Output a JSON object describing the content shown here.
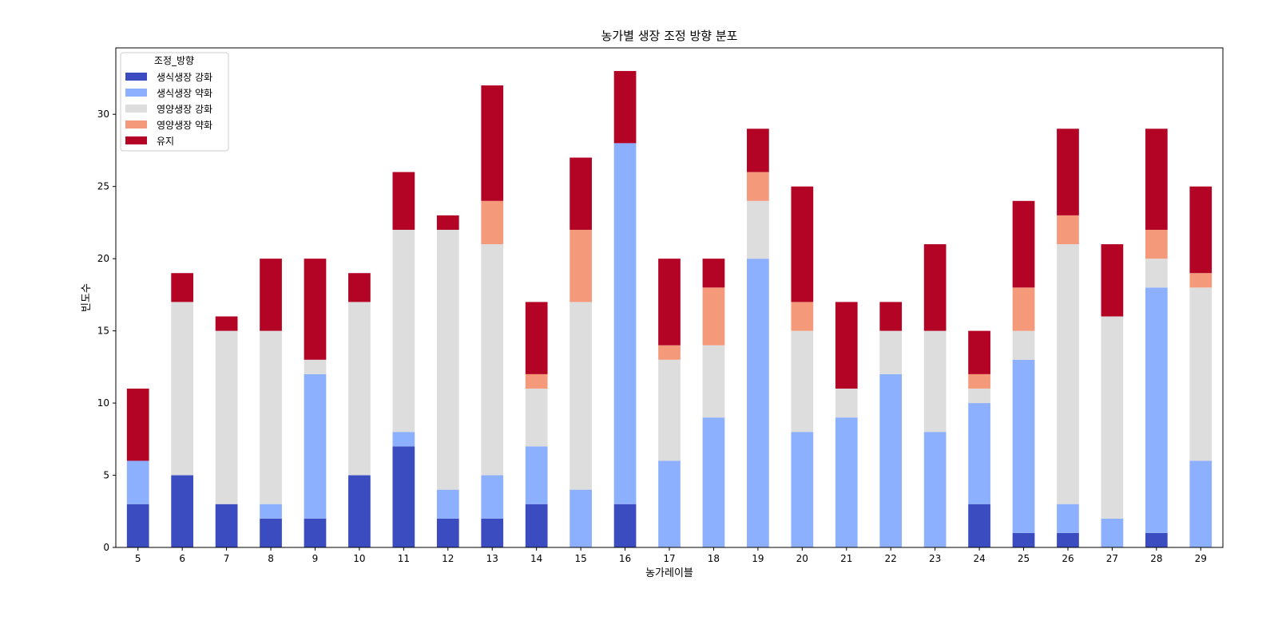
{
  "chart_data": {
    "type": "bar",
    "stacked": true,
    "title": "농가별 생장 조정 방향 분포",
    "xlabel": "농가레이블",
    "ylabel": "빈도수",
    "ylim": [
      0,
      34.6
    ],
    "yticks": [
      0,
      5,
      10,
      15,
      20,
      25,
      30
    ],
    "grid": false,
    "legend": {
      "title": "조정_방향",
      "placement": "top-left"
    },
    "categories": [
      "5",
      "6",
      "7",
      "8",
      "9",
      "10",
      "11",
      "12",
      "13",
      "14",
      "15",
      "16",
      "17",
      "18",
      "19",
      "20",
      "21",
      "22",
      "23",
      "24",
      "25",
      "26",
      "27",
      "28",
      "29"
    ],
    "series": [
      {
        "name": "생식생장 강화",
        "color": "#3b4cc0",
        "values": [
          3,
          5,
          3,
          2,
          2,
          5,
          7,
          2,
          2,
          3,
          0,
          3,
          0,
          0,
          0,
          0,
          0,
          0,
          0,
          3,
          1,
          1,
          0,
          1,
          0
        ]
      },
      {
        "name": "생식생장 약화",
        "color": "#8db0fe",
        "values": [
          3,
          0,
          0,
          1,
          10,
          0,
          1,
          2,
          3,
          4,
          4,
          25,
          6,
          9,
          20,
          8,
          9,
          12,
          8,
          7,
          12,
          2,
          2,
          17,
          6
        ]
      },
      {
        "name": "영양생장 강화",
        "color": "#dddddd",
        "values": [
          0,
          12,
          12,
          12,
          1,
          12,
          14,
          18,
          16,
          4,
          13,
          0,
          7,
          5,
          4,
          7,
          2,
          3,
          7,
          1,
          2,
          18,
          14,
          2,
          12
        ]
      },
      {
        "name": "영양생장 약화",
        "color": "#f49a7b",
        "values": [
          0,
          0,
          0,
          0,
          0,
          0,
          0,
          0,
          3,
          1,
          5,
          0,
          1,
          4,
          2,
          2,
          0,
          0,
          0,
          1,
          3,
          2,
          0,
          2,
          1
        ]
      },
      {
        "name": "유지",
        "color": "#b40426",
        "values": [
          5,
          2,
          1,
          5,
          7,
          2,
          4,
          1,
          8,
          5,
          5,
          5,
          6,
          2,
          3,
          8,
          6,
          2,
          6,
          3,
          6,
          6,
          5,
          7,
          6
        ]
      }
    ]
  }
}
